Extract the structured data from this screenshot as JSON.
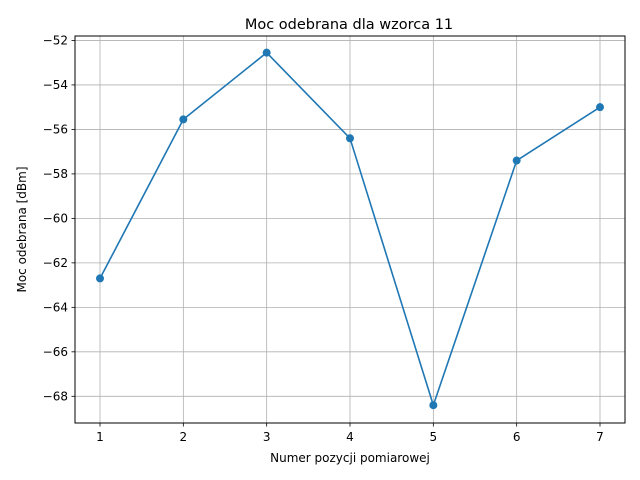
{
  "chart_data": {
    "type": "line",
    "title": "Moc odebrana dla wzorca 11",
    "xlabel": "Numer pozycji pomiarowej",
    "ylabel": "Moc odebrana [dBm]",
    "x": [
      1,
      2,
      3,
      4,
      5,
      6,
      7
    ],
    "series": [
      {
        "values": [
          -62.7,
          -55.55,
          -52.55,
          -56.4,
          -68.4,
          -57.4,
          -55.0
        ],
        "color": "#1f77b4",
        "marker": "circle"
      }
    ],
    "xlim": [
      0.7,
      7.3
    ],
    "ylim": [
      -69.2,
      -51.8
    ],
    "xticks": [
      1,
      2,
      3,
      4,
      5,
      6,
      7
    ],
    "xtick_labels": [
      "1",
      "2",
      "3",
      "4",
      "5",
      "6",
      "7"
    ],
    "yticks": [
      -68,
      -66,
      -64,
      -62,
      -60,
      -58,
      -56,
      -54,
      -52
    ],
    "ytick_labels": [
      "−68",
      "−66",
      "−64",
      "−62",
      "−60",
      "−58",
      "−56",
      "−54",
      "−52"
    ],
    "grid": true,
    "legend": "none"
  }
}
